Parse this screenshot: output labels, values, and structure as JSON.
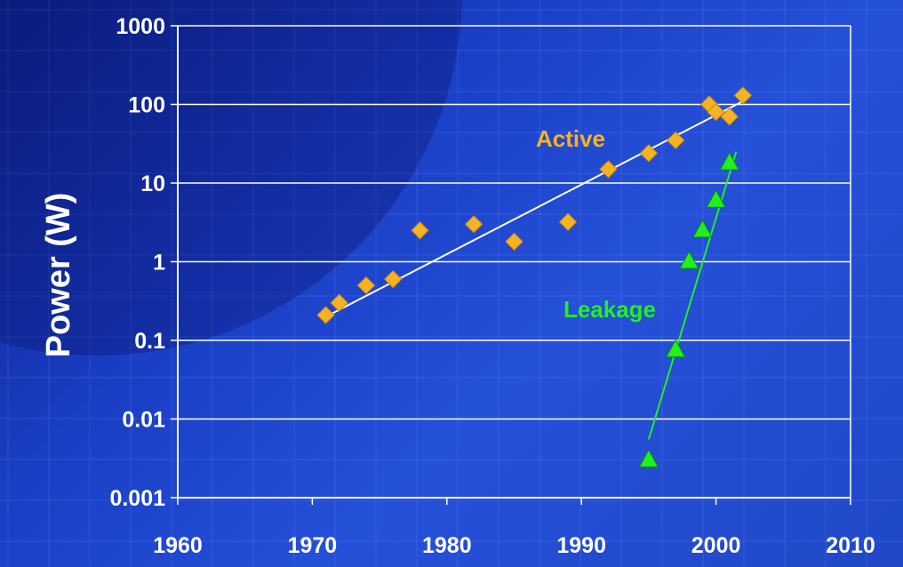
{
  "chart_data": {
    "type": "scatter",
    "ylabel": "Power (W)",
    "xlabel": "",
    "yscale": "log",
    "xlim": [
      1960,
      2010
    ],
    "ylim": [
      0.001,
      1000
    ],
    "x_ticks": [
      1960,
      1970,
      1980,
      1990,
      2000,
      2010
    ],
    "y_ticks": [
      0.001,
      0.01,
      0.1,
      1,
      10,
      100,
      1000
    ],
    "y_tick_labels": [
      "0.001",
      "0.01",
      "0.1",
      "1",
      "10",
      "100",
      "1000"
    ],
    "grid": "horizontal",
    "series": [
      {
        "name": "Active",
        "marker": "diamond",
        "color": "#f5b324",
        "points": [
          {
            "x": 1971,
            "y": 0.21
          },
          {
            "x": 1972,
            "y": 0.3
          },
          {
            "x": 1974,
            "y": 0.5
          },
          {
            "x": 1976,
            "y": 0.6
          },
          {
            "x": 1978,
            "y": 2.5
          },
          {
            "x": 1982,
            "y": 3.0
          },
          {
            "x": 1985,
            "y": 1.8
          },
          {
            "x": 1989,
            "y": 3.2
          },
          {
            "x": 1992,
            "y": 15
          },
          {
            "x": 1995,
            "y": 24
          },
          {
            "x": 1997,
            "y": 35
          },
          {
            "x": 1999.5,
            "y": 100
          },
          {
            "x": 2000,
            "y": 80
          },
          {
            "x": 2001,
            "y": 70
          },
          {
            "x": 2002,
            "y": 130
          }
        ],
        "trendline": {
          "color": "#ffffff",
          "from": {
            "x": 1971,
            "y": 0.2
          },
          "to": {
            "x": 2002,
            "y": 110
          }
        }
      },
      {
        "name": "Leakage",
        "marker": "triangle",
        "color": "#22ee22",
        "points": [
          {
            "x": 1995,
            "y": 0.003
          },
          {
            "x": 1997,
            "y": 0.075
          },
          {
            "x": 1998,
            "y": 1.0
          },
          {
            "x": 1999,
            "y": 2.5
          },
          {
            "x": 2000,
            "y": 6
          },
          {
            "x": 2001,
            "y": 18
          }
        ],
        "trendline": {
          "color": "#22ee22",
          "from": {
            "x": 1995,
            "y": 0.0055
          },
          "to": {
            "x": 2001.5,
            "y": 25
          }
        }
      }
    ]
  }
}
